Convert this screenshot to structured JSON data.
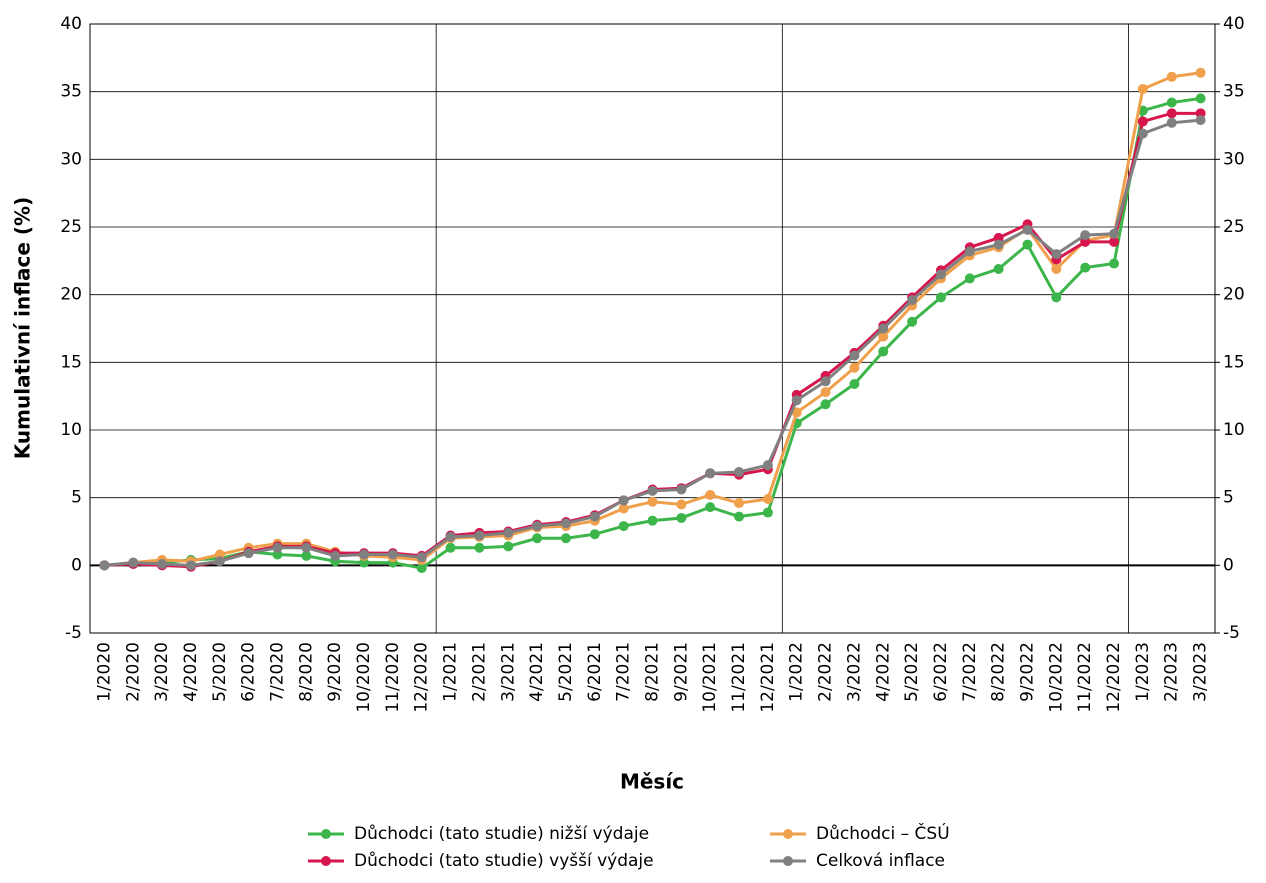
{
  "chart_data": {
    "type": "line",
    "x_label": "Měsíc",
    "y_label": "Kumulativní inflace (%)",
    "categories": [
      "1/2020",
      "2/2020",
      "3/2020",
      "4/2020",
      "5/2020",
      "6/2020",
      "7/2020",
      "8/2020",
      "9/2020",
      "10/2020",
      "11/2020",
      "12/2020",
      "1/2021",
      "2/2021",
      "3/2021",
      "4/2021",
      "5/2021",
      "6/2021",
      "7/2021",
      "8/2021",
      "9/2021",
      "10/2021",
      "11/2021",
      "12/2021",
      "1/2022",
      "2/2022",
      "3/2022",
      "4/2022",
      "5/2022",
      "6/2022",
      "7/2022",
      "8/2022",
      "9/2022",
      "10/2022",
      "11/2022",
      "12/2022",
      "1/2023",
      "2/2023",
      "3/2023"
    ],
    "series": [
      {
        "name": "Důchodci (tato studie) nižší výdaje",
        "color": "#3cb54a",
        "values": [
          0,
          0.2,
          0.2,
          0.4,
          0.5,
          1.0,
          0.8,
          0.7,
          0.3,
          0.2,
          0.2,
          -0.2,
          1.3,
          1.3,
          1.4,
          2.0,
          2.0,
          2.3,
          2.9,
          3.3,
          3.5,
          4.3,
          3.6,
          3.9,
          10.5,
          11.9,
          13.4,
          15.8,
          18.0,
          19.8,
          21.2,
          21.9,
          23.7,
          19.8,
          22.0,
          22.3,
          33.6,
          34.2,
          34.5
        ]
      },
      {
        "name": "Důchodci – ČSÚ",
        "color": "#f0a04b",
        "values": [
          0,
          0.2,
          0.4,
          0.3,
          0.8,
          1.3,
          1.6,
          1.6,
          1.0,
          0.7,
          0.6,
          0.4,
          2.0,
          2.1,
          2.2,
          2.8,
          2.9,
          3.3,
          4.2,
          4.7,
          4.5,
          5.2,
          4.6,
          4.9,
          11.3,
          12.8,
          14.6,
          16.9,
          19.2,
          21.2,
          22.9,
          23.5,
          24.9,
          21.9,
          24.0,
          24.4,
          35.2,
          36.1,
          36.4
        ]
      },
      {
        "name": "Důchodci (tato studie) vyšší výdaje",
        "color": "#d6164d",
        "values": [
          0,
          0.1,
          0.0,
          -0.1,
          0.3,
          1.0,
          1.4,
          1.4,
          0.9,
          0.9,
          0.9,
          0.7,
          2.2,
          2.4,
          2.5,
          3.0,
          3.2,
          3.7,
          4.8,
          5.6,
          5.7,
          6.8,
          6.7,
          7.1,
          12.6,
          14.0,
          15.7,
          17.7,
          19.8,
          21.8,
          23.5,
          24.2,
          25.2,
          22.6,
          23.9,
          23.9,
          32.8,
          33.4,
          33.4
        ]
      },
      {
        "name": "Celková inflace",
        "color": "#808080",
        "values": [
          0,
          0.2,
          0.1,
          0.0,
          0.3,
          0.9,
          1.3,
          1.3,
          0.7,
          0.8,
          0.8,
          0.6,
          2.1,
          2.2,
          2.4,
          2.9,
          3.1,
          3.6,
          4.8,
          5.5,
          5.6,
          6.8,
          6.9,
          7.4,
          12.2,
          13.6,
          15.5,
          17.5,
          19.6,
          21.5,
          23.2,
          23.7,
          24.8,
          23.0,
          24.4,
          24.5,
          31.9,
          32.7,
          32.9
        ]
      }
    ],
    "ylim": [
      -5,
      40
    ],
    "yticks": [
      -5,
      0,
      5,
      10,
      15,
      20,
      25,
      30,
      35,
      40
    ],
    "y2lim": [
      -5,
      40
    ],
    "y2ticks": [
      -5,
      0,
      5,
      10,
      15,
      20,
      25,
      30,
      35,
      40
    ],
    "grid": true
  }
}
